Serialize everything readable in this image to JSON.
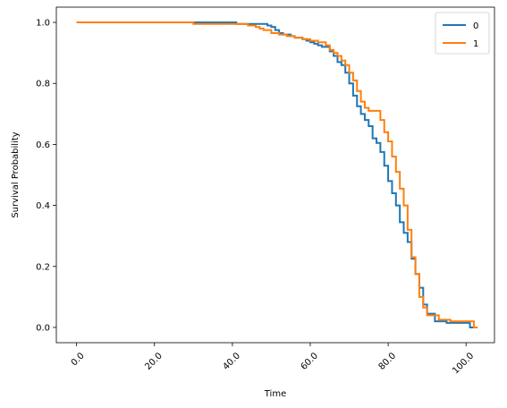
{
  "chart_data": {
    "type": "line",
    "step": true,
    "title": "",
    "xlabel": "Time",
    "ylabel": "Survival Probability",
    "xlim": [
      -5.2,
      107.3
    ],
    "ylim": [
      -0.05,
      1.05
    ],
    "xticks": [
      0,
      20,
      40,
      60,
      80,
      100
    ],
    "xtick_labels": [
      "0.0",
      "20.0",
      "40.0",
      "60.0",
      "80.0",
      "100.0"
    ],
    "yticks": [
      0,
      0.2,
      0.4,
      0.6,
      0.8,
      1.0
    ],
    "ytick_labels": [
      "0.0",
      "0.2",
      "0.4",
      "0.6",
      "0.8",
      "1.0"
    ],
    "xtick_rotation": 45,
    "grid": false,
    "legend_position": "top-right",
    "series": [
      {
        "name": "0",
        "color": "#1f77b4",
        "x": [
          0,
          41,
          49,
          50,
          51,
          52,
          53,
          55,
          56,
          58,
          59,
          60,
          61,
          62,
          63,
          65,
          66,
          67,
          68,
          69,
          70,
          71,
          72,
          73,
          74,
          75,
          76,
          77,
          78,
          79,
          80,
          81,
          82,
          83,
          84,
          85,
          86,
          87,
          88,
          89,
          90,
          92,
          95,
          98,
          101,
          102
        ],
        "y": [
          1.0,
          0.995,
          0.99,
          0.985,
          0.975,
          0.965,
          0.96,
          0.955,
          0.95,
          0.945,
          0.94,
          0.935,
          0.93,
          0.925,
          0.92,
          0.905,
          0.89,
          0.87,
          0.86,
          0.835,
          0.8,
          0.76,
          0.725,
          0.7,
          0.68,
          0.66,
          0.62,
          0.605,
          0.575,
          0.53,
          0.48,
          0.44,
          0.4,
          0.345,
          0.31,
          0.28,
          0.225,
          0.175,
          0.13,
          0.075,
          0.045,
          0.02,
          0.015,
          0.015,
          0.0,
          0.0
        ]
      },
      {
        "name": "1",
        "color": "#ff7f0e",
        "x": [
          0,
          30,
          44,
          46,
          47,
          48,
          50,
          52,
          54,
          56,
          58,
          60,
          62,
          64,
          65,
          66,
          67,
          68,
          69,
          70,
          71,
          72,
          73,
          74,
          75,
          77,
          78,
          79,
          80,
          81,
          82,
          83,
          84,
          85,
          86,
          87,
          88,
          89,
          90,
          93,
          96,
          100,
          102,
          103
        ],
        "y": [
          1.0,
          0.995,
          0.99,
          0.985,
          0.98,
          0.975,
          0.965,
          0.96,
          0.955,
          0.95,
          0.945,
          0.94,
          0.935,
          0.925,
          0.91,
          0.9,
          0.89,
          0.875,
          0.86,
          0.835,
          0.81,
          0.775,
          0.74,
          0.72,
          0.71,
          0.71,
          0.68,
          0.64,
          0.61,
          0.56,
          0.51,
          0.455,
          0.4,
          0.32,
          0.23,
          0.175,
          0.1,
          0.065,
          0.04,
          0.025,
          0.02,
          0.02,
          0.0,
          0.0
        ]
      }
    ]
  }
}
